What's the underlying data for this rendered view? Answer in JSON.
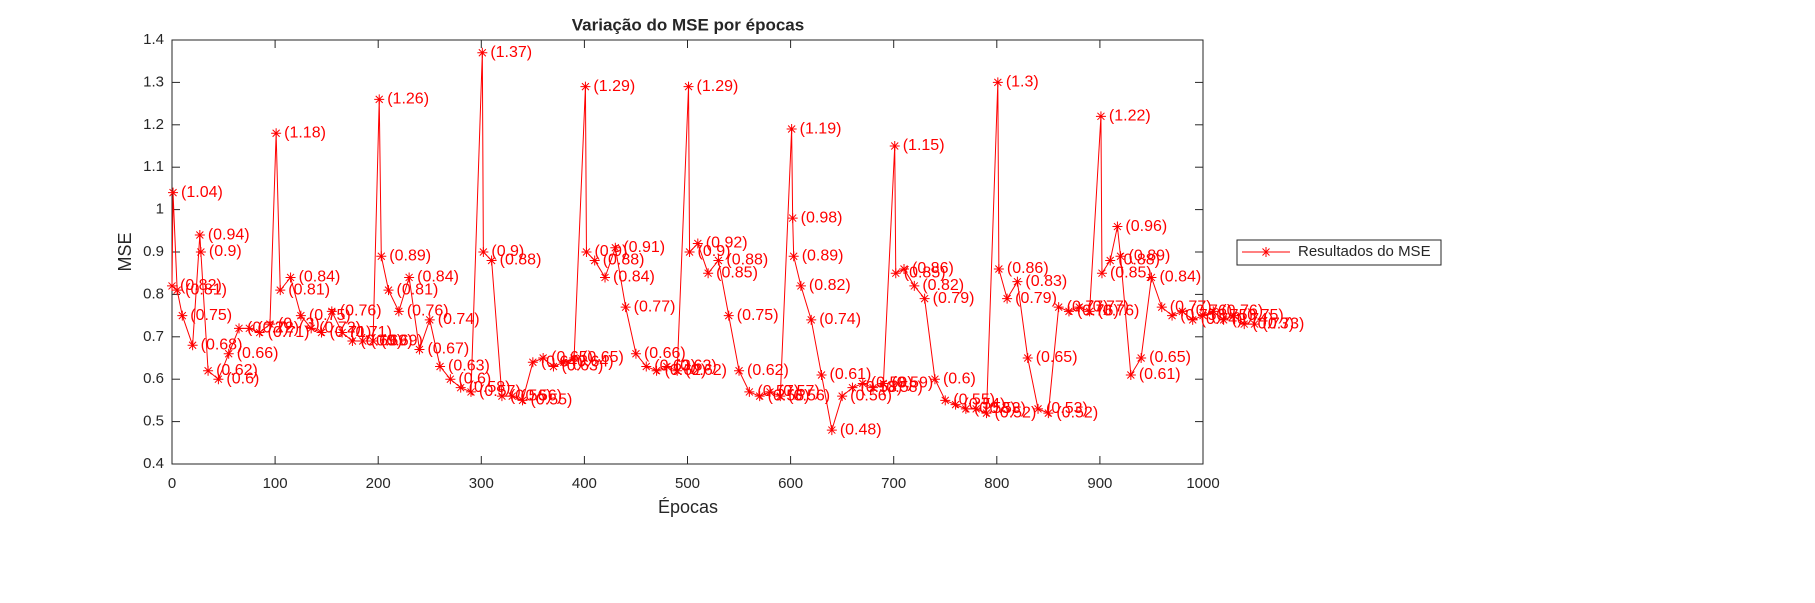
{
  "chart_data": {
    "type": "line",
    "title": "Variação do MSE por épocas",
    "x_label": "Épocas",
    "y_label": "MSE",
    "xlim": [
      0,
      1000
    ],
    "ylim": [
      0.4,
      1.4
    ],
    "xticks": [
      0,
      100,
      200,
      300,
      400,
      500,
      600,
      700,
      800,
      900,
      1000
    ],
    "yticks": [
      0.4,
      0.5,
      0.6,
      0.7,
      0.8,
      0.9,
      1,
      1.1,
      1.2,
      1.3,
      1.4
    ],
    "legend": "right",
    "x": [
      0,
      1,
      5,
      10,
      20,
      27,
      28,
      35,
      45,
      55,
      65,
      75,
      85,
      95,
      101,
      105,
      115,
      125,
      135,
      145,
      155,
      165,
      175,
      185,
      195,
      201,
      203,
      210,
      220,
      230,
      240,
      250,
      260,
      270,
      280,
      290,
      301,
      302,
      310,
      320,
      330,
      340,
      350,
      360,
      370,
      380,
      390,
      401,
      402,
      410,
      420,
      430,
      440,
      450,
      460,
      470,
      480,
      490,
      501,
      502,
      510,
      520,
      530,
      540,
      550,
      560,
      570,
      580,
      590,
      601,
      602,
      603,
      610,
      620,
      630,
      640,
      650,
      660,
      670,
      680,
      690,
      701,
      702,
      710,
      720,
      730,
      740,
      750,
      760,
      770,
      780,
      790,
      801,
      802,
      810,
      820,
      830,
      840,
      850,
      860,
      870,
      880,
      890,
      901,
      902,
      910,
      917,
      920,
      930,
      940,
      950,
      960,
      970,
      980,
      990,
      1000,
      1010,
      1020,
      1030,
      1040,
      1050
    ],
    "series": [
      {
        "name": "Resultados do MSE",
        "color": "#ff0000",
        "values": [
          0.82,
          1.04,
          0.81,
          0.75,
          0.68,
          0.94,
          0.9,
          0.62,
          0.6,
          0.66,
          0.72,
          0.72,
          0.71,
          0.73,
          1.18,
          0.81,
          0.84,
          0.75,
          0.72,
          0.71,
          0.76,
          0.71,
          0.69,
          0.69,
          0.69,
          1.26,
          0.89,
          0.81,
          0.76,
          0.84,
          0.67,
          0.74,
          0.63,
          0.6,
          0.58,
          0.57,
          1.37,
          0.9,
          0.88,
          0.56,
          0.56,
          0.55,
          0.64,
          0.65,
          0.63,
          0.64,
          0.65,
          1.29,
          0.9,
          0.88,
          0.84,
          0.91,
          0.77,
          0.66,
          0.63,
          0.62,
          0.63,
          0.62,
          1.29,
          0.9,
          0.92,
          0.85,
          0.88,
          0.75,
          0.62,
          0.57,
          0.56,
          0.57,
          0.56,
          1.19,
          0.98,
          0.89,
          0.82,
          0.74,
          0.61,
          0.48,
          0.56,
          0.58,
          0.59,
          0.58,
          0.59,
          1.15,
          0.85,
          0.86,
          0.82,
          0.79,
          0.6,
          0.55,
          0.54,
          0.53,
          0.53,
          0.52,
          1.3,
          0.86,
          0.79,
          0.83,
          0.65,
          0.53,
          0.52,
          0.77,
          0.76,
          0.77,
          0.76,
          1.22,
          0.85,
          0.88,
          0.96,
          0.89,
          0.61,
          0.65,
          0.84,
          0.77,
          0.75,
          0.76,
          0.74,
          0.75,
          0.76,
          0.74,
          0.75,
          0.73,
          0.73
        ],
        "value_labels": [
          "(0.82)",
          "(1.04)",
          "(0.81)",
          "(0.75)",
          "(0.68)",
          "(0.94)",
          "(0.9)",
          "(0.62)",
          "(0.6)",
          "(0.66)",
          "(0.72)",
          "(0.72)",
          "(0.71)",
          "(0.73)",
          "(1.18)",
          "(0.81)",
          "(0.84)",
          "(0.75)",
          "(0.72)",
          "(0.71)",
          "(0.76)",
          "(0.71)",
          "(0.69)",
          "(0.69)",
          "(0.69)",
          "(1.26)",
          "(0.89)",
          "(0.81)",
          "(0.76)",
          "(0.84)",
          "(0.67)",
          "(0.74)",
          "(0.63)",
          "(0.6)",
          "(0.58)",
          "(0.57)",
          "(1.37)",
          "(0.9)",
          "(0.88)",
          "(0.56)",
          "(0.56)",
          "(0.55)",
          "(0.64)",
          "(0.65)",
          "(0.63)",
          "(0.64)",
          "(0.65)",
          "(1.29)",
          "(0.9)",
          "(0.88)",
          "(0.84)",
          "(0.91)",
          "(0.77)",
          "(0.66)",
          "(0.63)",
          "(0.62)",
          "(0.63)",
          "(0.62)",
          "(1.29)",
          "(0.9)",
          "(0.92)",
          "(0.85)",
          "(0.88)",
          "(0.75)",
          "(0.62)",
          "(0.57)",
          "(0.56)",
          "(0.57)",
          "(0.56)",
          "(1.19)",
          "(0.98)",
          "(0.89)",
          "(0.82)",
          "(0.74)",
          "(0.61)",
          "(0.48)",
          "(0.56)",
          "(0.58)",
          "(0.59)",
          "(0.58)",
          "(0.59)",
          "(1.15)",
          "(0.85)",
          "(0.86)",
          "(0.82)",
          "(0.79)",
          "(0.6)",
          "(0.55)",
          "(0.54)",
          "(0.53)",
          "(0.53)",
          "(0.52)",
          "(1.3)",
          "(0.86)",
          "(0.79)",
          "(0.83)",
          "(0.65)",
          "(0.53)",
          "(0.52)",
          "(0.77)",
          "(0.76)",
          "(0.77)",
          "(0.76)",
          "(1.22)",
          "(0.85)",
          "(0.88)",
          "(0.96)",
          "(0.89)",
          "(0.61)",
          "(0.65)",
          "(0.84)",
          "(0.77)",
          "(0.75)",
          "(0.76)",
          "(0.74)",
          "(0.75)",
          "(0.76)",
          "(0.74)",
          "(0.75)",
          "(0.73)",
          "(0.73)"
        ]
      }
    ]
  }
}
